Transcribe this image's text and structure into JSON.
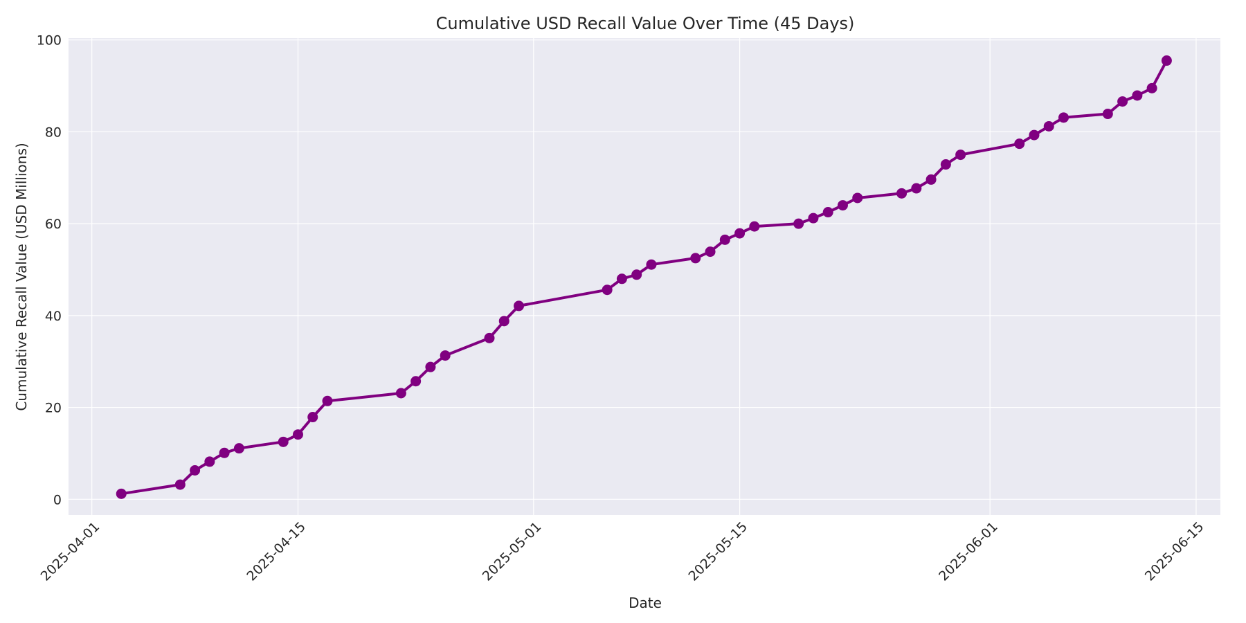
{
  "chart_data": {
    "type": "line",
    "title": "Cumulative USD Recall Value Over Time (45 Days)",
    "xlabel": "Date",
    "ylabel": "Cumulative Recall Value (USD Millions)",
    "ylim": [
      -3.5,
      100
    ],
    "xlim": [
      "2025-03-30",
      "2025-06-16"
    ],
    "y_ticks": [
      0,
      20,
      40,
      60,
      80,
      100
    ],
    "x_ticks": [
      "2025-04-01",
      "2025-04-15",
      "2025-05-01",
      "2025-05-15",
      "2025-06-01",
      "2025-06-15"
    ],
    "grid": true,
    "legend": null,
    "series": [
      {
        "name": "Cumulative Recall Value",
        "color": "#800080",
        "marker": "circle",
        "x": [
          "2025-04-03",
          "2025-04-07",
          "2025-04-08",
          "2025-04-09",
          "2025-04-10",
          "2025-04-11",
          "2025-04-14",
          "2025-04-15",
          "2025-04-16",
          "2025-04-17",
          "2025-04-22",
          "2025-04-23",
          "2025-04-24",
          "2025-04-25",
          "2025-04-28",
          "2025-04-29",
          "2025-04-30",
          "2025-05-06",
          "2025-05-07",
          "2025-05-08",
          "2025-05-09",
          "2025-05-12",
          "2025-05-13",
          "2025-05-14",
          "2025-05-15",
          "2025-05-16",
          "2025-05-19",
          "2025-05-20",
          "2025-05-21",
          "2025-05-22",
          "2025-05-23",
          "2025-05-26",
          "2025-05-27",
          "2025-05-28",
          "2025-05-29",
          "2025-05-30",
          "2025-06-03",
          "2025-06-04",
          "2025-06-05",
          "2025-06-06",
          "2025-06-09",
          "2025-06-10",
          "2025-06-11",
          "2025-06-12",
          "2025-06-13"
        ],
        "values": [
          1.2,
          3.2,
          6.3,
          8.2,
          10.1,
          11.1,
          12.5,
          14.1,
          17.9,
          21.4,
          23.1,
          25.7,
          28.8,
          31.3,
          35.1,
          38.8,
          42.1,
          45.6,
          48.0,
          48.9,
          51.1,
          52.5,
          53.9,
          56.5,
          57.9,
          59.4,
          60.0,
          61.2,
          62.5,
          64.0,
          65.6,
          66.6,
          67.7,
          69.6,
          72.9,
          75.0,
          77.4,
          79.3,
          81.2,
          83.1,
          83.9,
          86.6,
          87.9,
          89.5,
          95.5
        ]
      }
    ]
  },
  "colors": {
    "plot_background": "#eaeaf2",
    "grid": "#ffffff",
    "text": "#262626",
    "line": "#800080"
  }
}
